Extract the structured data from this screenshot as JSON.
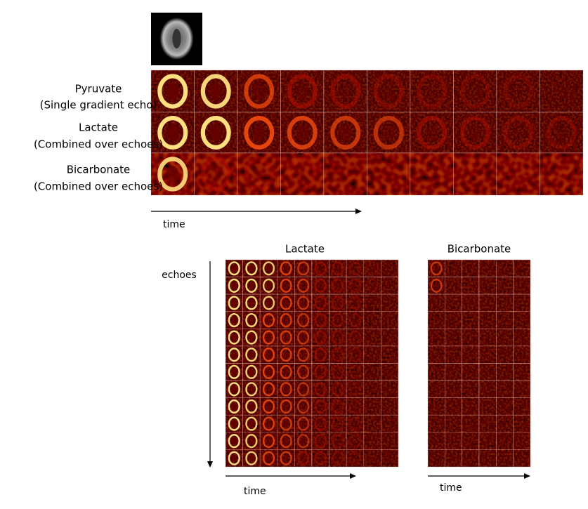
{
  "rows": [
    {
      "name": "Pyruvate",
      "subtitle": "(Single gradient echo)"
    },
    {
      "name": "Lactate",
      "subtitle": "(Combined over echoes)"
    },
    {
      "name": "Bicarbonate",
      "subtitle": "(Combined over echoes)"
    }
  ],
  "top_axis_label": "time",
  "panels": [
    {
      "title": "Lactate",
      "axis_label": "time"
    },
    {
      "title": "Bicarbonate",
      "axis_label": "time"
    }
  ],
  "echo_axis_label": "echoes"
}
